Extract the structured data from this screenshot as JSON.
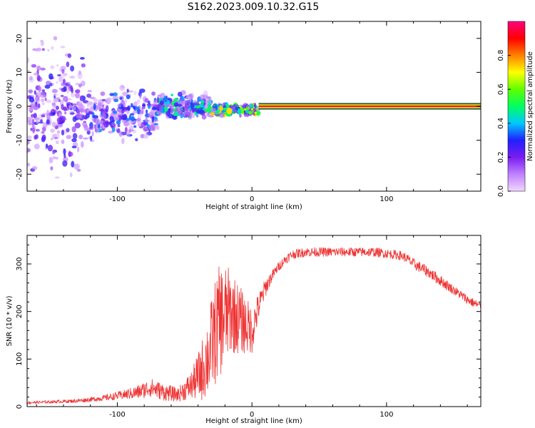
{
  "figure": {
    "title": "S162.2023.009.10.32.G15"
  },
  "chart_data": [
    {
      "type": "heatmap",
      "xlabel": "Height of straight line (km)",
      "ylabel": "Frequency (Hz)",
      "xlim": [
        -167,
        170
      ],
      "ylim": [
        -25,
        25
      ],
      "xticks": [
        -100,
        0,
        100
      ],
      "yticks": [
        -20,
        -10,
        0,
        10,
        20
      ],
      "grid": false,
      "colorbar": {
        "label": "Normalized spectral amplitude",
        "range": [
          0,
          1
        ],
        "ticks": [
          "0.0",
          "0.2",
          "0.4",
          "0.6",
          "0.8"
        ],
        "colormap": [
          "#f0d8ff",
          "#c080ff",
          "#7a1cf0",
          "#2020ff",
          "#00c8ff",
          "#00ff60",
          "#60ff00",
          "#ffff00",
          "#ff8000",
          "#ff0000",
          "#ff0080"
        ]
      },
      "tone_line": {
        "x_start": 5,
        "x_end": 170,
        "frequency": 0,
        "amplitude": 1.0
      },
      "blob_regions": [
        {
          "x_range": [
            -167,
            -125
          ],
          "f_center": 0,
          "f_spread": 25,
          "level": 0.2
        },
        {
          "x_range": [
            -125,
            -70
          ],
          "f_center": -3,
          "f_spread": 10,
          "level": 0.25
        },
        {
          "x_range": [
            -70,
            -30
          ],
          "f_center": 0,
          "f_spread": 5,
          "level": 0.35
        },
        {
          "x_range": [
            -30,
            5
          ],
          "f_center": -1,
          "f_spread": 2,
          "level": 0.5
        }
      ]
    },
    {
      "type": "line",
      "xlabel": "Height of straight line (km)",
      "ylabel": "SNR (10 * v/v)",
      "xlim": [
        -167,
        170
      ],
      "ylim": [
        0,
        360
      ],
      "xticks": [
        -100,
        0,
        100
      ],
      "yticks": [
        0,
        100,
        200,
        300
      ],
      "grid": false,
      "series": [
        {
          "color": "#ee3333",
          "x": [
            -167,
            -150,
            -130,
            -110,
            -95,
            -85,
            -75,
            -65,
            -55,
            -45,
            -38,
            -32,
            -28,
            -24,
            -20,
            -16,
            -12,
            -8,
            -4,
            0,
            5,
            10,
            15,
            20,
            25,
            30,
            40,
            50,
            60,
            70,
            80,
            90,
            100,
            110,
            115,
            120,
            130,
            140,
            150,
            160,
            170
          ],
          "y": [
            8,
            10,
            12,
            18,
            25,
            30,
            40,
            30,
            25,
            45,
            70,
            110,
            150,
            180,
            190,
            200,
            190,
            180,
            170,
            160,
            210,
            250,
            275,
            295,
            310,
            320,
            325,
            325,
            325,
            325,
            325,
            325,
            322,
            318,
            312,
            300,
            285,
            265,
            245,
            225,
            210
          ],
          "noise": [
            3,
            3,
            4,
            6,
            10,
            15,
            20,
            18,
            15,
            30,
            60,
            90,
            110,
            120,
            110,
            90,
            80,
            70,
            60,
            50,
            30,
            20,
            12,
            10,
            10,
            10,
            10,
            10,
            10,
            10,
            10,
            10,
            10,
            10,
            10,
            12,
            12,
            12,
            10,
            10,
            10
          ]
        }
      ]
    }
  ]
}
